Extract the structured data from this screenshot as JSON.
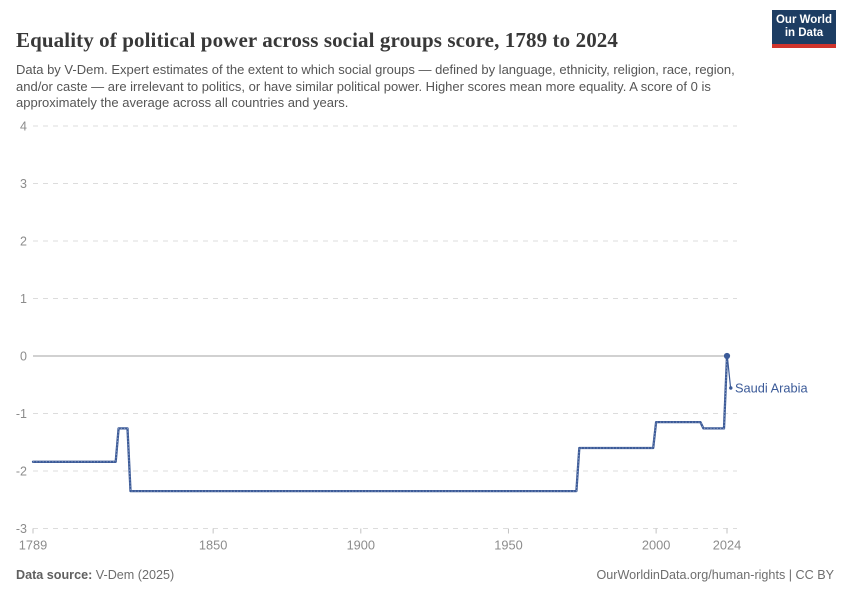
{
  "header": {
    "title": "Equality of political power across social groups score, 1789 to 2024",
    "subtitle": "Data by V-Dem. Expert estimates of the extent to which social groups — defined by language, ethnicity, religion, race, region, and/or caste — are irrelevant to politics, or have similar political power. Higher scores mean more equality. A score of 0 is approximately the average across all countries and years.",
    "logo": {
      "line1": "Our World",
      "line2": "in Data",
      "bg_color": "#1d3d63",
      "accent_color": "#d0342c"
    }
  },
  "chart_data": {
    "type": "line",
    "title": "Equality of political power across social groups score, 1789 to 2024",
    "entity_label": "Saudi Arabia",
    "series": [
      {
        "name": "Saudi Arabia",
        "color": "#3b5a98",
        "points": [
          [
            1789,
            -1.84
          ],
          [
            1817,
            -1.84
          ],
          [
            1818,
            -1.26
          ],
          [
            1821,
            -1.26
          ],
          [
            1822,
            -2.35
          ],
          [
            1973,
            -2.35
          ],
          [
            1974,
            -1.6
          ],
          [
            1999,
            -1.6
          ],
          [
            2000,
            -1.15
          ],
          [
            2015,
            -1.15
          ],
          [
            2016,
            -1.26
          ],
          [
            2023,
            -1.26
          ],
          [
            2024,
            0.0
          ]
        ]
      }
    ],
    "xlim": [
      1789,
      2024
    ],
    "ylim": [
      -3,
      4
    ],
    "x_ticks": [
      1789,
      1850,
      1900,
      1950,
      2000,
      2024
    ],
    "y_ticks": [
      4,
      3,
      2,
      1,
      0,
      -1,
      -2,
      -3
    ],
    "grid": "horizontal-dashed",
    "zero_line": true,
    "legend_position": "end-of-line-label",
    "grid_color": "#dcdcdc",
    "zero_line_color": "#a3a3a3",
    "axis_label_color": "#8c8c8c",
    "tick_color": "#c2c2c2"
  },
  "footer": {
    "datasource_label": "Data source:",
    "datasource_value": "V-Dem (2025)",
    "license_text": "OurWorldinData.org/human-rights | CC BY"
  }
}
